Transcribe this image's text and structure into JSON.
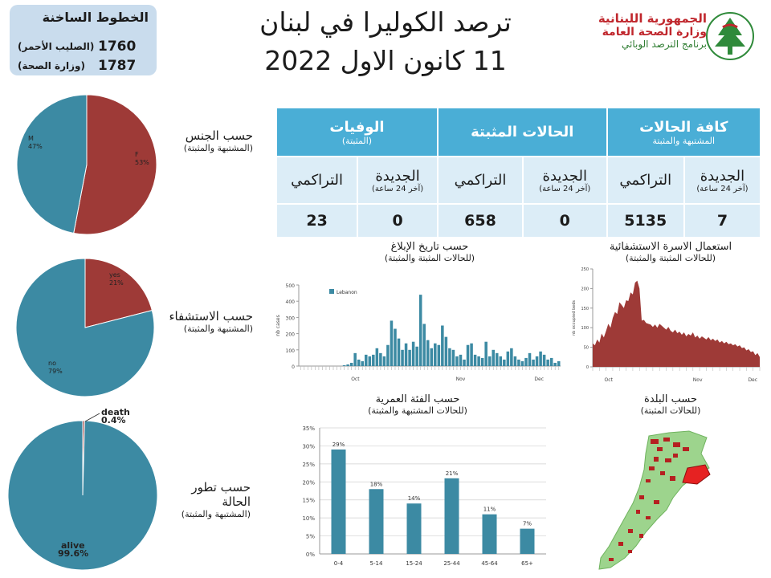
{
  "hotlines": {
    "title": "الخطوط الساخنة",
    "items": [
      {
        "number": "1760",
        "label": "(الصليب الأحمر)"
      },
      {
        "number": "1787",
        "label": "(وزارة الصحة)"
      }
    ]
  },
  "title": {
    "line1": "ترصد الكوليرا في لبنان",
    "line2": "11 كانون الاول 2022"
  },
  "logo": {
    "line1": "الجمهورية اللبنانية",
    "line2": "وزارة الصحة العامة",
    "line3": "برنامج الترصد الوبائي"
  },
  "table": {
    "groups": [
      {
        "title": "كافة الحالات",
        "subtitle": "المشتبهة والمثبتة"
      },
      {
        "title": "الحالات المثبتة",
        "subtitle": ""
      },
      {
        "title": "الوفيات",
        "subtitle": "(المثبتة)"
      }
    ],
    "new_label": "الجديدة",
    "new_sub": "(آخر 24 ساعة)",
    "cum_label": "التراكمي",
    "values": {
      "all_new": "7",
      "all_cum": "5135",
      "confirmed_new": "0",
      "confirmed_cum": "658",
      "deaths_new": "0",
      "deaths_cum": "23"
    }
  },
  "side_labels": {
    "gender": {
      "a": "حسب الجنس",
      "b": "(المشتبهة والمثبتة)"
    },
    "hosp": {
      "a": "حسب الاستشفاء",
      "b": "(المشتبهة والمثبتة)"
    },
    "outcome": {
      "a1": "حسب تطور",
      "a2": "الحالة",
      "b": "(المشتبهة والمثبتة)"
    }
  },
  "chart_titles": {
    "report": {
      "a": "حسب تاريخ الإبلاغ",
      "b": "(للحالات المثبتة والمثبتة)"
    },
    "beds": {
      "a": "استعمال الاسرة الاستشفائية",
      "b": "(للحالات المثبتة والمثبتة)"
    },
    "age": {
      "a": "حسب الفئة العمرية",
      "b": "(للحالات المشتبهة والمثبتة)"
    },
    "town": {
      "a": "حسب البلدة",
      "b": "(للحالات المثبتة)"
    }
  },
  "chart_data": [
    {
      "type": "pie",
      "id": "gender",
      "slices": [
        {
          "label": "F",
          "value": 53,
          "text": "53%",
          "color": "#9e3a37"
        },
        {
          "label": "M",
          "value": 47,
          "text": "47%",
          "color": "#3c8aa3"
        }
      ]
    },
    {
      "type": "pie",
      "id": "hospitalization",
      "slices": [
        {
          "label": "yes",
          "value": 21,
          "text": "21%",
          "color": "#9e3a37"
        },
        {
          "label": "no",
          "value": 79,
          "text": "79%",
          "color": "#3c8aa3"
        }
      ]
    },
    {
      "type": "pie",
      "id": "outcome",
      "slices": [
        {
          "label": "death",
          "value": 0.4,
          "text": "0.4%",
          "color": "#9e3a37"
        },
        {
          "label": "alive",
          "value": 99.6,
          "text": "99.6%",
          "color": "#3c8aa3"
        }
      ]
    },
    {
      "type": "bar",
      "id": "by-report-date",
      "ylabel": "nb cases",
      "ylim": [
        0,
        500
      ],
      "yticks": [
        0,
        100,
        200,
        300,
        400,
        500
      ],
      "legend": "Lebanon",
      "xmonths": [
        "Oct",
        "Nov",
        "Dec"
      ],
      "values": [
        0,
        0,
        0,
        0,
        0,
        0,
        0,
        0,
        0,
        0,
        0,
        0,
        5,
        10,
        20,
        80,
        40,
        30,
        70,
        60,
        70,
        110,
        80,
        60,
        130,
        280,
        230,
        170,
        100,
        140,
        100,
        150,
        120,
        440,
        260,
        160,
        110,
        140,
        130,
        250,
        180,
        110,
        100,
        60,
        70,
        40,
        130,
        140,
        70,
        60,
        50,
        150,
        60,
        100,
        80,
        60,
        40,
        90,
        110,
        60,
        40,
        30,
        50,
        80,
        40,
        60,
        90,
        70,
        40,
        50,
        20,
        30
      ]
    },
    {
      "type": "area",
      "id": "beds",
      "ylabel": "nb occupied beds",
      "ylim": [
        0,
        250
      ],
      "yticks": [
        0,
        50,
        100,
        150,
        200,
        250
      ],
      "xmonths": [
        "Oct",
        "Nov",
        "Dec"
      ],
      "values": [
        60,
        55,
        70,
        62,
        85,
        75,
        92,
        110,
        100,
        125,
        140,
        135,
        165,
        158,
        150,
        170,
        168,
        190,
        185,
        215,
        220,
        200,
        118,
        120,
        112,
        110,
        108,
        102,
        108,
        100,
        110,
        105,
        100,
        95,
        102,
        92,
        88,
        95,
        86,
        90,
        82,
        88,
        78,
        84,
        80,
        88,
        75,
        80,
        72,
        78,
        74,
        70,
        76,
        68,
        72,
        66,
        70,
        62,
        66,
        60,
        64,
        58,
        60,
        55,
        58,
        52,
        55,
        48,
        50,
        42,
        45,
        38,
        40,
        30,
        35,
        25
      ]
    },
    {
      "type": "bar",
      "id": "by-age",
      "categories": [
        "0-4",
        "5-14",
        "15-24",
        "25-44",
        "45-64",
        "65+"
      ],
      "values": [
        29,
        18,
        14,
        21,
        11,
        7
      ],
      "labels": [
        "29%",
        "18%",
        "14%",
        "21%",
        "11%",
        "7%"
      ],
      "ylim": [
        0,
        35
      ],
      "yticks": [
        "0%",
        "5%",
        "10%",
        "15%",
        "20%",
        "25%",
        "30%",
        "35%"
      ]
    }
  ]
}
